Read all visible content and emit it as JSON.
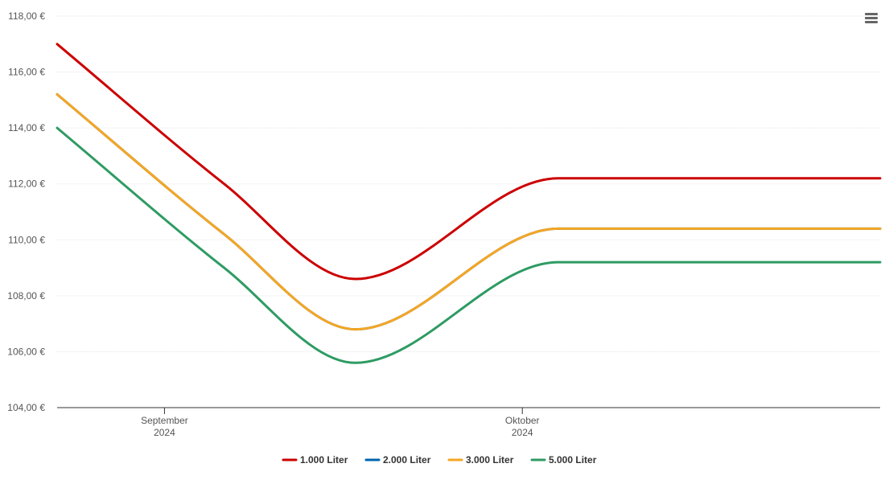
{
  "chart_data": {
    "type": "line",
    "title": "",
    "xlabel": "",
    "ylabel": "",
    "ylim": [
      104,
      118
    ],
    "y_ticks": [
      104,
      106,
      108,
      110,
      112,
      114,
      116,
      118
    ],
    "y_tick_labels": [
      "104,00 €",
      "106,00 €",
      "108,00 €",
      "110,00 €",
      "112,00 €",
      "114,00 €",
      "116,00 €",
      "118,00 €"
    ],
    "x_range": [
      "2024-08-23",
      "2024-10-31"
    ],
    "x_ticks": [
      {
        "date": "2024-09-01",
        "month": "September",
        "year": "2024"
      },
      {
        "date": "2024-10-01",
        "month": "Oktober",
        "year": "2024"
      }
    ],
    "x": [
      "2024-08-23",
      "2024-09-06",
      "2024-09-17",
      "2024-10-04",
      "2024-10-31"
    ],
    "series": [
      {
        "name": "1.000 Liter",
        "color": "#cc0000",
        "values": [
          117.0,
          112.0,
          108.6,
          112.2,
          112.2
        ]
      },
      {
        "name": "2.000 Liter",
        "color": "#0063b0",
        "values": [
          115.2,
          110.2,
          106.8,
          110.4,
          110.4
        ]
      },
      {
        "name": "3.000 Liter",
        "color": "#f5a623",
        "values": [
          115.2,
          110.2,
          106.8,
          110.4,
          110.4
        ]
      },
      {
        "name": "5.000 Liter",
        "color": "#2e9b63",
        "values": [
          114.0,
          109.0,
          105.6,
          109.2,
          109.2
        ]
      }
    ],
    "grid": true,
    "legend_position": "bottom-center"
  },
  "menu": {
    "icon": "hamburger-menu-icon"
  }
}
